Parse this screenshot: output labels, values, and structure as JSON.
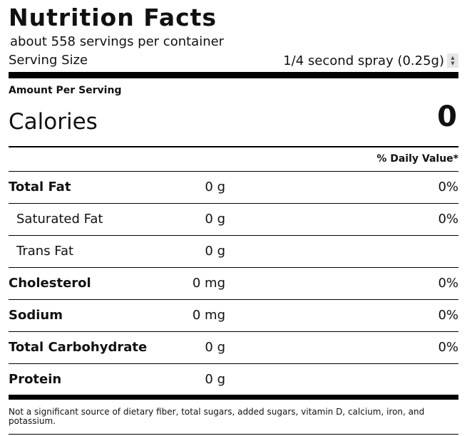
{
  "label": {
    "title": "Nutrition Facts",
    "servings_per_container": "about 558 servings per container",
    "serving_size_label": "Serving Size",
    "serving_size_value": "1/4 second spray (0.25g)",
    "amount_per_serving": "Amount Per Serving",
    "calories_label": "Calories",
    "calories_value": "0",
    "daily_value_header": "% Daily Value*"
  },
  "nutrients": [
    {
      "name": "Total Fat",
      "amount": "0 g",
      "dv": "0%",
      "bold": true
    },
    {
      "name": "Saturated Fat",
      "amount": "0 g",
      "dv": "0%",
      "bold": false
    },
    {
      "name": "Trans Fat",
      "amount": "0 g",
      "dv": "",
      "bold": false
    },
    {
      "name": "Cholesterol",
      "amount": "0 mg",
      "dv": "0%",
      "bold": true
    },
    {
      "name": "Sodium",
      "amount": "0 mg",
      "dv": "0%",
      "bold": true
    },
    {
      "name": "Total Carbohydrate",
      "amount": "0 g",
      "dv": "0%",
      "bold": true
    },
    {
      "name": "Protein",
      "amount": "0 g",
      "dv": "",
      "bold": true
    }
  ],
  "footnote": "Not a significant source of dietary fiber, total sugars, added sugars, vitamin D, calcium, iron, and potassium.",
  "icons": {
    "serving_selector": "up-down-spinner-icon"
  }
}
